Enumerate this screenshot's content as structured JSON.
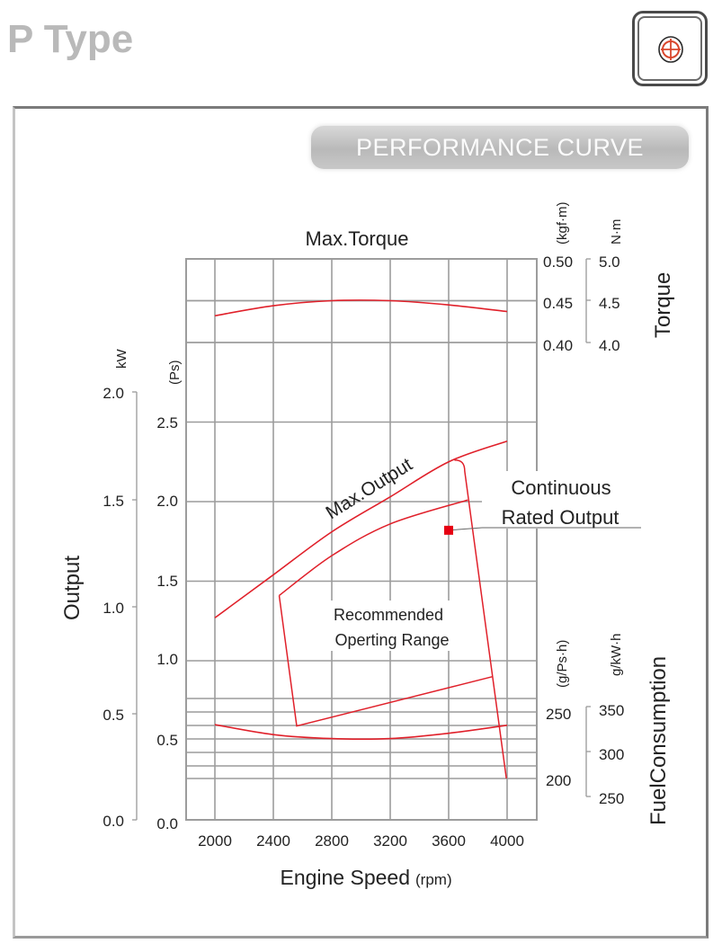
{
  "page": {
    "title": "P Type",
    "icon": "crosshair-target-icon",
    "banner": "PERFORMANCE CURVE",
    "colors": {
      "curve": "#e0202a",
      "grid": "#9c9c9c",
      "title": "#b9b9b9",
      "banner_text": "#fbfbfb"
    }
  },
  "chart_data": {
    "type": "line",
    "title": "",
    "xlabel": "Engine Speed",
    "xlabel_unit": "(rpm)",
    "x_ticks": [
      "2000",
      "2400",
      "2800",
      "3200",
      "3600",
      "4000"
    ],
    "x": [
      2000,
      2400,
      2800,
      3200,
      3600,
      4000
    ],
    "xlim": [
      1800,
      4200
    ],
    "grid": true,
    "torque_panel": {
      "heading": "Max.Torque",
      "axis_label": "Torque",
      "unit_primary": "(kgf·m)",
      "unit_secondary": "N·m",
      "ticks_primary": [
        "0.50",
        "0.45",
        "0.40"
      ],
      "ticks_secondary": [
        "5.0",
        "4.5",
        "4.0"
      ],
      "ylim": [
        0.4,
        0.5
      ]
    },
    "output_panel": {
      "axis_label": "Output",
      "unit_kw": "kW",
      "unit_ps": "(Ps)",
      "ticks_kw": [
        "2.0",
        "1.5",
        "1.0",
        "0.5",
        "0.0"
      ],
      "ticks_ps": [
        "2.5",
        "2.0",
        "1.5",
        "1.0",
        "0.5",
        "0.0"
      ],
      "ylim_ps": [
        0,
        2.5
      ]
    },
    "fuel_panel": {
      "axis_label": "FuelConsumption",
      "unit_primary": "(g/Ps·h)",
      "unit_secondary": "g/kW·h",
      "ticks_primary": [
        "250",
        "200"
      ],
      "ticks_secondary": [
        "350",
        "300",
        "250"
      ],
      "ylim": [
        200,
        250
      ]
    },
    "series": [
      {
        "name": "Max.Torque",
        "unit": "kgf·m",
        "x": [
          2000,
          2400,
          2800,
          3200,
          3600,
          4000
        ],
        "values": [
          0.432,
          0.444,
          0.45,
          0.45,
          0.445,
          0.437
        ]
      },
      {
        "name": "Max.Output",
        "unit": "Ps",
        "x": [
          2000,
          2400,
          2800,
          3200,
          3600,
          4000
        ],
        "values": [
          1.27,
          1.54,
          1.81,
          2.03,
          2.25,
          2.38
        ]
      },
      {
        "name": "Fuel Consumption",
        "unit": "g/Ps·h",
        "x": [
          2000,
          2400,
          2800,
          3200,
          3600,
          4000
        ],
        "values": [
          240.5,
          233,
          230,
          230,
          234,
          240
        ]
      }
    ],
    "recommended_range": {
      "label_line1": "Recommended",
      "label_line2": "Operting Range",
      "upper_boundary": {
        "x": [
          2440,
          2800,
          3200,
          3730
        ],
        "values": [
          1.41,
          1.66,
          1.86,
          2.01
        ]
      },
      "polygon_corners": [
        {
          "rpm": 2440,
          "ps": 1.41
        },
        {
          "rpm": 2560,
          "ps": 0.59
        },
        {
          "rpm": 3900,
          "ps": 0.9
        },
        {
          "rpm": 3730,
          "ps": 2.01
        }
      ],
      "outer_limit_line": [
        {
          "rpm": 3640,
          "ps": 2.26
        },
        {
          "rpm": 3710,
          "ps": 2.19
        },
        {
          "rpm": 3995,
          "ps": 0.26
        }
      ]
    },
    "rated_point": {
      "label_line1": "Continuous",
      "label_line2": "Rated Output",
      "rpm": 3600,
      "ps": 1.82
    }
  }
}
